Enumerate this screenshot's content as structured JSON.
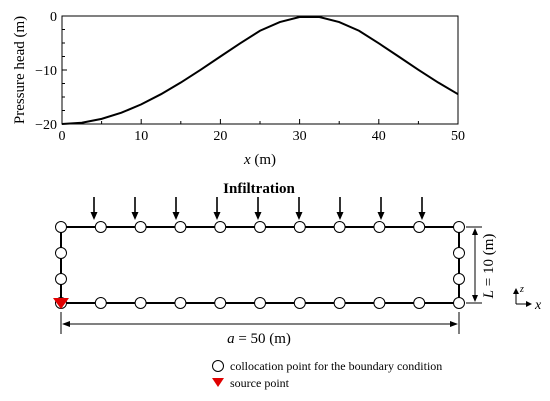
{
  "chart_data": {
    "type": "line",
    "title": "",
    "xlabel_var": "x",
    "xlabel_unit": " (m)",
    "ylabel": "Pressure head (m)",
    "xlim": [
      0,
      50
    ],
    "ylim": [
      -20,
      0
    ],
    "xticks": [
      0,
      10,
      20,
      30,
      40,
      50
    ],
    "yticks": [
      0,
      -10,
      -20
    ],
    "xtick_labels": [
      "0",
      "10",
      "20",
      "30",
      "40",
      "50"
    ],
    "ytick_labels": [
      "0",
      "−10",
      "−20"
    ],
    "grid": false,
    "series": [
      {
        "x": [
          0,
          2.5,
          5,
          7.5,
          10,
          12.5,
          15,
          17.5,
          20,
          22.5,
          25,
          27.5,
          30,
          32.5,
          35,
          37.5,
          40,
          42.5,
          45,
          47.5,
          50
        ],
        "values": [
          -20,
          -19.76,
          -19.05,
          -17.91,
          -16.37,
          -14.48,
          -12.32,
          -9.96,
          -7.5,
          -5.06,
          -2.73,
          -1.12,
          -0.19,
          -0.19,
          -1.12,
          -2.73,
          -5.06,
          -7.5,
          -9.96,
          -12.32,
          -14.48
        ]
      }
    ],
    "line_color": "#000000"
  },
  "diagram": {
    "infiltration_label": "Infiltration",
    "arrow_count": 9,
    "height_label_var": "L",
    "height_label_text": " = 10 (m)",
    "width_label_var": "a",
    "width_label_text": " = 50 (m)",
    "axis_x": "x",
    "axis_z": "z",
    "source_color": "#e00000"
  },
  "legend": {
    "collocation_label": "collocation point for the boundary condition",
    "source_label": "source point"
  }
}
